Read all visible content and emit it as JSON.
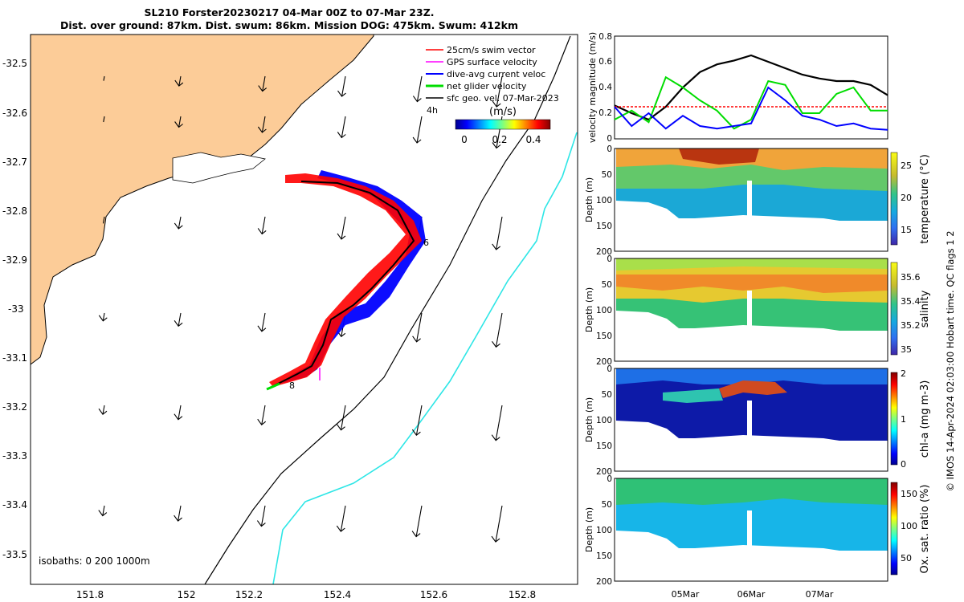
{
  "header": {
    "title_line1": "SL210 Forster20230217 04-Mar 00Z to 07-Mar 23Z.",
    "title_line2": "Dist. over ground: 87km. Dist. swum: 86km. Mission DOG: 475km. Swum: 412km"
  },
  "map": {
    "lon_ticks": [
      "151.8",
      "152",
      "152.2",
      "152.4",
      "152.6",
      "152.8"
    ],
    "lat_ticks": [
      "-32.5",
      "-32.6",
      "-32.7",
      "-32.8",
      "-32.9",
      "-33",
      "-33.1",
      "-33.2",
      "-33.3",
      "-33.4",
      "-33.5"
    ],
    "isobaths_label": "isobaths: 0   200  1000m",
    "time_labels": [
      "4h",
      "6",
      "8"
    ],
    "legend": [
      {
        "label": "25cm/s swim vector",
        "color": "#ff0000"
      },
      {
        "label": "GPS surface velocity",
        "color": "#ff00ff"
      },
      {
        "label": "dive-avg current veloc",
        "color": "#0000ff"
      },
      {
        "label": "net glider velocity",
        "color": "#00dd00"
      },
      {
        "label": "sfc geo. vel. 07-Mar-2023",
        "color": "#000000"
      }
    ],
    "colorbar": {
      "unit": "(m/s)",
      "ticks": [
        "0",
        "0.2",
        "0.4"
      ]
    },
    "colors": {
      "land": "#fccc98",
      "isobath_200": "#000000",
      "isobath_1000": "#2ee6e6"
    }
  },
  "velocity_panel": {
    "ylabel": "velocity magnitude (m/s)",
    "y_ticks": [
      "0",
      "0.2",
      "0.4",
      "0.6",
      "0.8"
    ],
    "chart_data": {
      "type": "line",
      "x_days": [
        0,
        0.25,
        0.5,
        0.75,
        1.0,
        1.25,
        1.5,
        1.75,
        2.0,
        2.25,
        2.5,
        2.75,
        3.0,
        3.25,
        3.5,
        3.75,
        4.0
      ],
      "series": [
        {
          "color": "#000000",
          "values": [
            0.26,
            0.2,
            0.15,
            0.25,
            0.4,
            0.52,
            0.58,
            0.61,
            0.65,
            0.6,
            0.55,
            0.5,
            0.47,
            0.45,
            0.45,
            0.42,
            0.34
          ]
        },
        {
          "color": "#ff0000",
          "values": [
            0.25,
            0.25,
            0.25,
            0.25,
            0.25,
            0.25,
            0.25,
            0.25,
            0.25,
            0.25,
            0.25,
            0.25,
            0.25,
            0.25,
            0.25,
            0.25,
            0.25
          ]
        },
        {
          "color": "#00dd00",
          "values": [
            0.15,
            0.22,
            0.13,
            0.48,
            0.4,
            0.3,
            0.22,
            0.08,
            0.15,
            0.45,
            0.42,
            0.2,
            0.2,
            0.35,
            0.4,
            0.22,
            0.22
          ]
        },
        {
          "color": "#0000ff",
          "values": [
            0.25,
            0.1,
            0.2,
            0.08,
            0.18,
            0.1,
            0.08,
            0.1,
            0.12,
            0.4,
            0.3,
            0.18,
            0.15,
            0.1,
            0.12,
            0.08,
            0.07
          ]
        }
      ],
      "ylim": [
        0,
        0.8
      ]
    }
  },
  "depth_panels": [
    {
      "id": "temperature",
      "cb_label": "temperature (°C)",
      "cb_ticks": [
        "15",
        "20",
        "25"
      ],
      "cb_range": [
        12,
        28
      ]
    },
    {
      "id": "salinity",
      "cb_label": "salinity",
      "cb_ticks": [
        "35",
        "35.2",
        "35.4",
        "35.6"
      ],
      "cb_range": [
        34.95,
        35.72
      ]
    },
    {
      "id": "chla",
      "cb_label": "chl-a (mg m-3)",
      "cb_ticks": [
        "0",
        "1",
        "2"
      ],
      "cb_range": [
        0,
        2
      ]
    },
    {
      "id": "oxygen",
      "cb_label": "Ox. sat. ratio (%)",
      "cb_ticks": [
        "50",
        "100",
        "150"
      ],
      "cb_range": [
        20,
        175
      ]
    }
  ],
  "depth_axis": {
    "label": "Depth (m)",
    "ticks": [
      "0",
      "50",
      "100",
      "150",
      "200"
    ]
  },
  "time_axis": {
    "ticks": [
      "05Mar",
      "06Mar",
      "07Mar"
    ]
  },
  "credit": "© IMOS 14-Apr-2024 02:03:00 Hobart time. QC flags 1  2"
}
